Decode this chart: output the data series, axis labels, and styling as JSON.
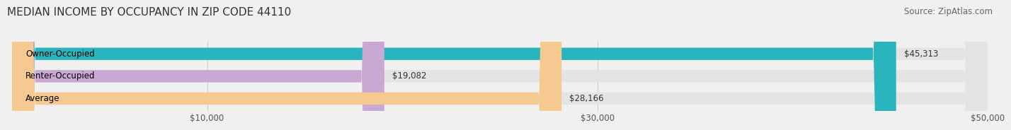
{
  "title": "MEDIAN INCOME BY OCCUPANCY IN ZIP CODE 44110",
  "source": "Source: ZipAtlas.com",
  "categories": [
    "Owner-Occupied",
    "Renter-Occupied",
    "Average"
  ],
  "values": [
    45313,
    19082,
    28166
  ],
  "bar_colors": [
    "#2ab5be",
    "#c9a8d4",
    "#f5c990"
  ],
  "value_labels": [
    "$45,313",
    "$19,082",
    "$28,166"
  ],
  "xlim": [
    0,
    50000
  ],
  "xticks": [
    10000,
    30000,
    50000
  ],
  "xtick_labels": [
    "$10,000",
    "$30,000",
    "$50,000"
  ],
  "background_color": "#f0f0f0",
  "bar_bg_color": "#e4e4e4",
  "title_fontsize": 11,
  "source_fontsize": 8.5,
  "label_fontsize": 8.5,
  "tick_fontsize": 8.5
}
